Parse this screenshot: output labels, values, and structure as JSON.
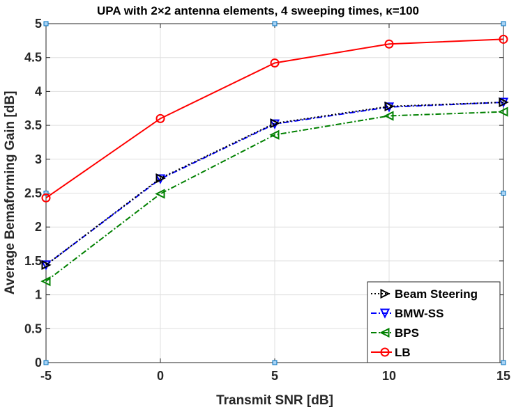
{
  "chart_data": {
    "type": "line",
    "title": "UPA with 2×2 antenna elements, 4 sweeping times, κ=100",
    "xlabel": "Transmit SNR [dB]",
    "ylabel": "Average Bemaforming Gain [dB]",
    "x": [
      -5,
      0,
      5,
      10,
      15
    ],
    "xlim": [
      -5,
      15
    ],
    "ylim": [
      0,
      5
    ],
    "xticks": [
      -5,
      0,
      5,
      10,
      15
    ],
    "yticks": [
      0,
      0.5,
      1,
      1.5,
      2,
      2.5,
      3,
      3.5,
      4,
      4.5,
      5
    ],
    "xtick_labels": [
      "-5",
      "0",
      "5",
      "10",
      "15"
    ],
    "ytick_labels": [
      "0",
      "0.5",
      "1",
      "1.5",
      "2",
      "2.5",
      "3",
      "3.5",
      "4",
      "4.5",
      "5"
    ],
    "grid": true,
    "legend_location": "bottom-right",
    "series": [
      {
        "name": "Beam Steering",
        "values": [
          1.44,
          2.72,
          3.53,
          3.78,
          3.84
        ],
        "color": "#000000",
        "line_style": "dotted",
        "marker": "triangle-right"
      },
      {
        "name": "BMW-SS",
        "values": [
          1.44,
          2.71,
          3.52,
          3.77,
          3.84
        ],
        "color": "#0000ff",
        "line_style": "dash-dot",
        "marker": "triangle-down"
      },
      {
        "name": "BPS",
        "values": [
          1.2,
          2.49,
          3.36,
          3.64,
          3.7
        ],
        "color": "#008000",
        "line_style": "dash-dot",
        "marker": "triangle-left"
      },
      {
        "name": "LB",
        "values": [
          2.43,
          3.6,
          4.42,
          4.7,
          4.77
        ],
        "color": "#ff0000",
        "line_style": "solid",
        "marker": "circle"
      }
    ],
    "axis_markers": {
      "color": "#0072bd",
      "points": [
        [
          -5,
          5
        ],
        [
          5,
          5
        ],
        [
          15,
          5
        ],
        [
          -5,
          2.5
        ],
        [
          15,
          2.5
        ],
        [
          -5,
          0
        ],
        [
          5,
          0
        ],
        [
          15,
          0
        ]
      ]
    }
  }
}
